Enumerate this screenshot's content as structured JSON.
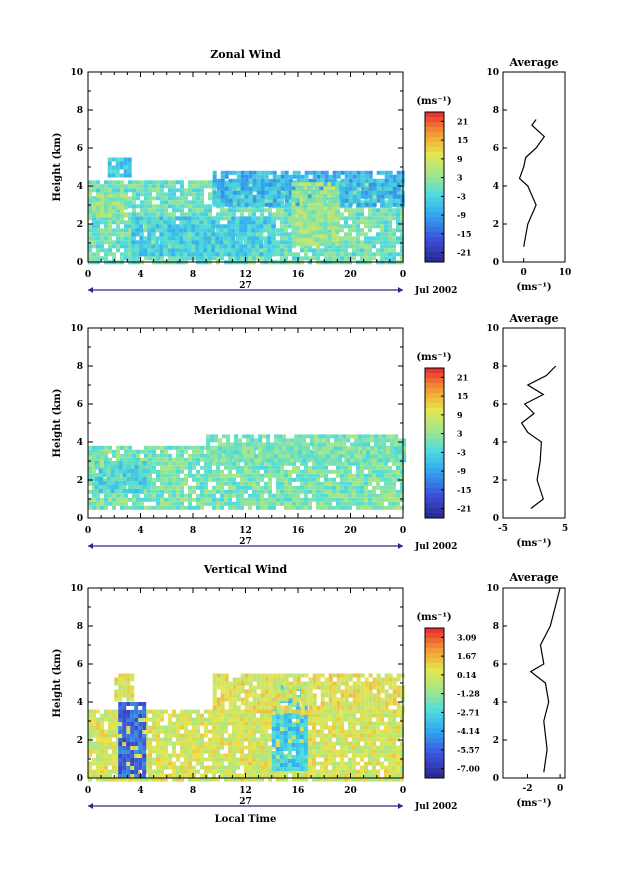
{
  "chart_data": [
    {
      "type": "heatmap",
      "title": "Zonal Wind",
      "ylabel": "Height (km)",
      "xlabel": "",
      "x_ticks": [
        "0",
        "4",
        "8",
        "12",
        "16",
        "20",
        "0"
      ],
      "y_ticks": [
        "0",
        "2",
        "4",
        "6",
        "8",
        "10"
      ],
      "xlim": [
        0,
        24
      ],
      "ylim": [
        0,
        10
      ],
      "date_label": "27",
      "month_label": "Jul 2002",
      "colorbar": {
        "unit": "(ms⁻¹)",
        "ticks": [
          "21",
          "15",
          "9",
          "3",
          "-3",
          "-9",
          "-15",
          "-21"
        ],
        "range": [
          -24,
          24
        ]
      },
      "regions": [
        {
          "x": [
            0.0,
            24.0
          ],
          "y": [
            0.0,
            4.3
          ],
          "v": 0
        },
        {
          "x": [
            1.5,
            3.3
          ],
          "y": [
            4.5,
            5.5
          ],
          "v": -5
        },
        {
          "x": [
            0.0,
            3.0
          ],
          "y": [
            2.5,
            3.6
          ],
          "v": 3
        },
        {
          "x": [
            3.3,
            14.0
          ],
          "y": [
            0.5,
            2.4
          ],
          "v": -4
        },
        {
          "x": [
            9.5,
            24.0
          ],
          "y": [
            3.0,
            4.8
          ],
          "v": -7
        },
        {
          "x": [
            15.5,
            19.0
          ],
          "y": [
            1.0,
            4.2
          ],
          "v": 4
        }
      ],
      "average": {
        "title": "Average",
        "xlabel": "(ms⁻¹)",
        "x_ticks": [
          "0",
          "10"
        ],
        "y_ticks": [
          "0",
          "2",
          "4",
          "6",
          "8",
          "10"
        ],
        "xlim": [
          -5,
          10
        ],
        "ylim": [
          0,
          10
        ],
        "points": [
          [
            0,
            0.8
          ],
          [
            1,
            2
          ],
          [
            3,
            3
          ],
          [
            1,
            4
          ],
          [
            -1,
            4.4
          ],
          [
            0,
            5
          ],
          [
            0.5,
            5.5
          ],
          [
            3,
            6
          ],
          [
            5,
            6.6
          ],
          [
            2,
            7.2
          ],
          [
            3,
            7.5
          ]
        ]
      }
    },
    {
      "type": "heatmap",
      "title": "Meridional Wind",
      "ylabel": "Height (km)",
      "xlabel": "",
      "x_ticks": [
        "0",
        "4",
        "8",
        "12",
        "16",
        "20",
        "0"
      ],
      "y_ticks": [
        "0",
        "2",
        "4",
        "6",
        "8",
        "10"
      ],
      "xlim": [
        0,
        24
      ],
      "ylim": [
        0,
        10
      ],
      "date_label": "27",
      "month_label": "Jul 2002",
      "colorbar": {
        "unit": "(ms⁻¹)",
        "ticks": [
          "21",
          "15",
          "9",
          "3",
          "-3",
          "-9",
          "-15",
          "-21"
        ],
        "range": [
          -24,
          24
        ]
      },
      "regions": [
        {
          "x": [
            0.0,
            24.0
          ],
          "y": [
            0.5,
            3.8
          ],
          "v": 1
        },
        {
          "x": [
            0.5,
            4.5
          ],
          "y": [
            1.5,
            3.0
          ],
          "v": -3
        },
        {
          "x": [
            9.0,
            24.0
          ],
          "y": [
            3.0,
            4.4
          ],
          "v": 1
        },
        {
          "x": [
            0.0,
            1.3
          ],
          "y": [
            2.8,
            3.5
          ],
          "v": 2
        }
      ],
      "average": {
        "title": "Average",
        "xlabel": "(ms⁻¹)",
        "x_ticks": [
          "-5",
          "5"
        ],
        "y_ticks": [
          "0",
          "2",
          "4",
          "6",
          "8",
          "10"
        ],
        "xlim": [
          -5,
          5
        ],
        "ylim": [
          0,
          10
        ],
        "points": [
          [
            -0.5,
            0.5
          ],
          [
            1.5,
            1
          ],
          [
            0.5,
            2
          ],
          [
            1,
            3
          ],
          [
            1.2,
            4
          ],
          [
            -1,
            4.5
          ],
          [
            -2,
            5
          ],
          [
            0,
            5.5
          ],
          [
            -1.5,
            6
          ],
          [
            1.5,
            6.5
          ],
          [
            -1,
            7
          ],
          [
            2,
            7.5
          ],
          [
            3.5,
            8
          ]
        ]
      }
    },
    {
      "type": "heatmap",
      "title": "Vertical Wind",
      "ylabel": "Height (km)",
      "xlabel": "Local Time",
      "x_ticks": [
        "0",
        "4",
        "8",
        "12",
        "16",
        "20",
        "0"
      ],
      "y_ticks": [
        "0",
        "2",
        "4",
        "6",
        "8",
        "10"
      ],
      "xlim": [
        0,
        24
      ],
      "ylim": [
        0,
        10
      ],
      "date_label": "27",
      "month_label": "Jul 2002",
      "colorbar": {
        "unit": "(ms⁻¹)",
        "ticks": [
          "3.09",
          "1.67",
          "0.14",
          "-1.28",
          "-2.71",
          "-4.14",
          "-5.57",
          "-7.00"
        ],
        "range": [
          -7.7,
          3.8
        ]
      },
      "regions": [
        {
          "x": [
            0.0,
            24.0
          ],
          "y": [
            0.0,
            3.6
          ],
          "v": 0.2
        },
        {
          "x": [
            2.3,
            4.3
          ],
          "y": [
            0.0,
            4.0
          ],
          "v": -5.5
        },
        {
          "x": [
            14.0,
            16.5
          ],
          "y": [
            0.5,
            5.0
          ],
          "v": -3.0
        },
        {
          "x": [
            9.5,
            24.0
          ],
          "y": [
            3.5,
            5.5
          ],
          "v": 0.4
        },
        {
          "x": [
            2.0,
            3.3
          ],
          "y": [
            4.2,
            5.5
          ],
          "v": 0.3
        }
      ],
      "average": {
        "title": "Average",
        "xlabel": "(ms⁻¹)",
        "x_ticks": [
          "-2",
          "0"
        ],
        "y_ticks": [
          "0",
          "2",
          "4",
          "6",
          "8",
          "10"
        ],
        "xlim": [
          -3.5,
          0.3
        ],
        "ylim": [
          0,
          10
        ],
        "points": [
          [
            -1,
            0.3
          ],
          [
            -0.8,
            1.5
          ],
          [
            -1,
            3
          ],
          [
            -0.7,
            4
          ],
          [
            -0.9,
            5
          ],
          [
            -1.8,
            5.6
          ],
          [
            -1.0,
            6
          ],
          [
            -1.2,
            7
          ],
          [
            -0.6,
            8
          ],
          [
            -0.3,
            9
          ],
          [
            0,
            10
          ]
        ]
      }
    }
  ]
}
